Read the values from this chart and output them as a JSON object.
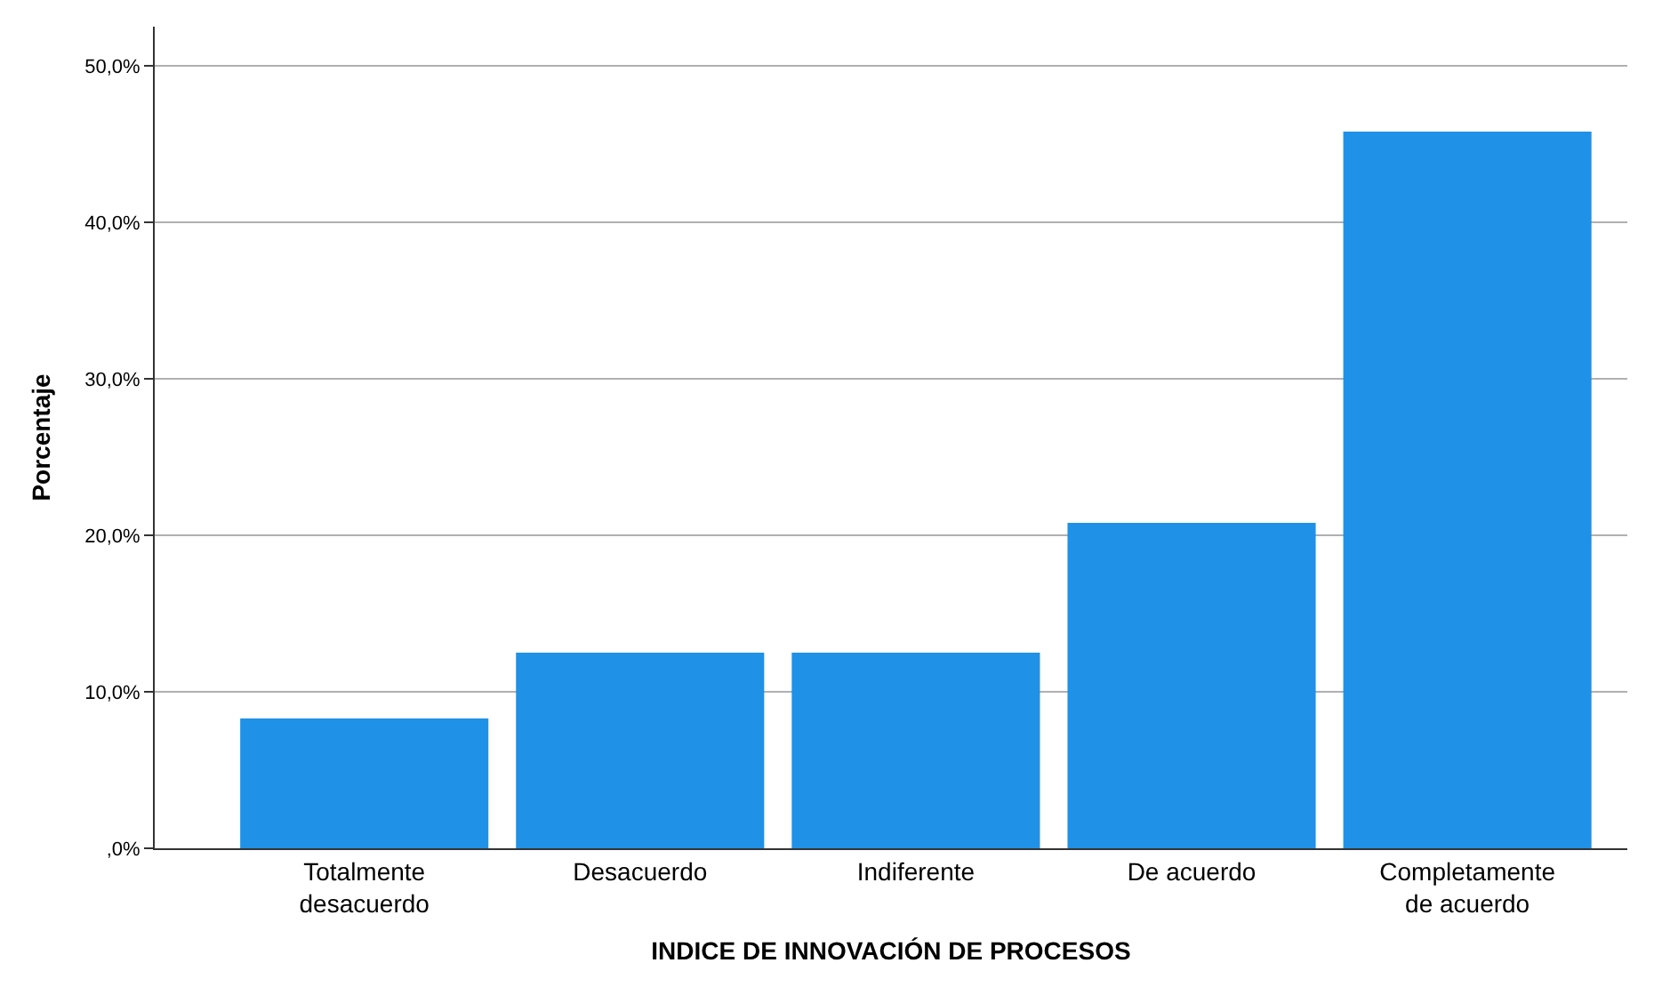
{
  "chart_data": {
    "type": "bar",
    "xlabel": "INDICE DE INNOVACIÓN DE PROCESOS",
    "ylabel": "Porcentaje",
    "categories": [
      "Totalmente\ndesacuerdo",
      "Desacuerdo",
      "Indiferente",
      "De acuerdo",
      "Completamente\nde acuerdo"
    ],
    "values": [
      8.3,
      12.5,
      12.5,
      20.8,
      45.8
    ],
    "color": "#1f91e6",
    "ylim": [
      0,
      52.5
    ],
    "yticks": [
      {
        "value": 0,
        "label": ",0%"
      },
      {
        "value": 10,
        "label": "10,0%"
      },
      {
        "value": 20,
        "label": "20,0%"
      },
      {
        "value": 30,
        "label": "30,0%"
      },
      {
        "value": 40,
        "label": "40,0%"
      },
      {
        "value": 50,
        "label": "50,0%"
      }
    ],
    "grid": "y"
  }
}
